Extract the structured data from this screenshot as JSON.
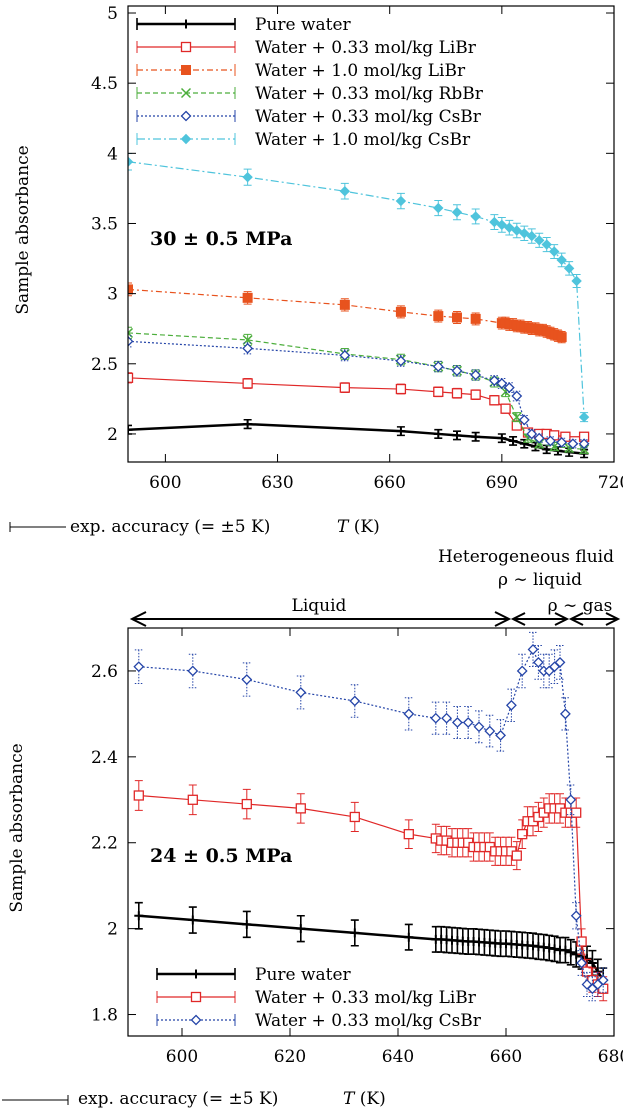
{
  "chart_data": [
    {
      "type": "line",
      "ylabel": "Sample absorbance",
      "xlabel": "T (K)",
      "footnote": "exp. accuracy (= ±5 K)",
      "annotation": "30 ±  0.5 MPa",
      "xlim": [
        590,
        720
      ],
      "ylim": [
        1.8,
        5.05
      ],
      "xticks": [
        600,
        630,
        660,
        690,
        720
      ],
      "yticks": [
        2,
        2.5,
        3,
        3.5,
        4,
        4.5,
        5
      ],
      "ytick_labels": [
        "2",
        "2.5",
        "3",
        "3.5",
        "4",
        "4.5",
        "5"
      ],
      "legend_position": "top-left",
      "series": [
        {
          "name": "Pure water",
          "color": "#000000",
          "dash": "",
          "marker": "plus",
          "width": 2.5,
          "x": [
            590,
            622,
            663,
            673,
            678,
            683,
            690,
            693,
            696,
            699,
            702,
            705,
            708,
            712
          ],
          "y": [
            2.03,
            2.07,
            2.02,
            2.0,
            1.99,
            1.98,
            1.97,
            1.95,
            1.93,
            1.91,
            1.89,
            1.88,
            1.87,
            1.86
          ]
        },
        {
          "name": "Water + 0.33 mol/kg LiBr",
          "color": "#e02828",
          "dash": "",
          "marker": "square-open",
          "width": 1.2,
          "x": [
            590,
            622,
            648,
            663,
            673,
            678,
            683,
            688,
            691,
            694,
            697,
            700,
            702,
            704,
            707,
            712
          ],
          "y": [
            2.4,
            2.36,
            2.33,
            2.32,
            2.3,
            2.29,
            2.28,
            2.24,
            2.18,
            2.06,
            2.01,
            2.0,
            2.0,
            1.99,
            1.98,
            1.98
          ]
        },
        {
          "name": "Water + 1.0 mol/kg LiBr",
          "color": "#e8531e",
          "dash": "6,3,2,3",
          "marker": "square-filled",
          "width": 1.2,
          "x": [
            590,
            622,
            648,
            663,
            673,
            678,
            683,
            690,
            691,
            692,
            693,
            694,
            695,
            696,
            697,
            698,
            699,
            700,
            701,
            702,
            703,
            704,
            705,
            706
          ],
          "y": [
            3.03,
            2.97,
            2.92,
            2.87,
            2.84,
            2.83,
            2.82,
            2.79,
            2.79,
            2.78,
            2.78,
            2.77,
            2.77,
            2.76,
            2.76,
            2.75,
            2.75,
            2.74,
            2.74,
            2.73,
            2.72,
            2.71,
            2.7,
            2.69
          ]
        },
        {
          "name": "Water + 0.33 mol/kg RbBr",
          "color": "#4cae3c",
          "dash": "5,3",
          "marker": "x",
          "width": 1.2,
          "x": [
            590,
            622,
            648,
            663,
            673,
            678,
            683,
            688,
            691,
            694,
            697,
            700,
            704,
            708,
            712
          ],
          "y": [
            2.72,
            2.67,
            2.57,
            2.53,
            2.48,
            2.45,
            2.42,
            2.37,
            2.3,
            2.12,
            1.97,
            1.93,
            1.91,
            1.9,
            1.89
          ]
        },
        {
          "name": "Water + 0.33 mol/kg CsBr",
          "color": "#2545a8",
          "dash": "2,2",
          "marker": "diamond-open",
          "width": 1.2,
          "x": [
            590,
            622,
            648,
            663,
            673,
            678,
            683,
            688,
            690,
            692,
            694,
            696,
            698,
            700,
            703,
            706,
            709,
            712
          ],
          "y": [
            2.66,
            2.61,
            2.56,
            2.52,
            2.48,
            2.45,
            2.42,
            2.38,
            2.36,
            2.33,
            2.27,
            2.1,
            2.0,
            1.97,
            1.95,
            1.94,
            1.93,
            1.93
          ]
        },
        {
          "name": "Water + 1.0 mol/kg CsBr",
          "color": "#4fc4dc",
          "dash": "8,3,2,3",
          "marker": "diamond-filled",
          "width": 1.2,
          "x": [
            590,
            622,
            648,
            663,
            673,
            678,
            683,
            688,
            690,
            692,
            694,
            696,
            698,
            700,
            702,
            704,
            706,
            708,
            710,
            712
          ],
          "y": [
            3.94,
            3.83,
            3.73,
            3.66,
            3.61,
            3.58,
            3.55,
            3.51,
            3.49,
            3.47,
            3.45,
            3.43,
            3.41,
            3.38,
            3.35,
            3.3,
            3.24,
            3.18,
            3.09,
            2.12
          ]
        }
      ]
    },
    {
      "type": "line",
      "ylabel": "Sample absorbance",
      "xlabel": "T (K)",
      "footnote": "exp. accuracy (= ±5 K)",
      "annotation": "24 ±  0.5 MPa",
      "xlim": [
        590,
        680
      ],
      "ylim": [
        1.75,
        2.7
      ],
      "xticks": [
        600,
        620,
        640,
        660,
        680
      ],
      "yticks": [
        1.8,
        2,
        2.2,
        2.4,
        2.6
      ],
      "ytick_labels": [
        "1.8",
        "2",
        "2.2",
        "2.4",
        "2.6"
      ],
      "legend_position": "bottom-left",
      "regions": {
        "header": "Heterogeneous fluid",
        "liquid": "Liquid",
        "rho_liquid": "ρ ∼ liquid",
        "rho_gas": "ρ ∼ gas"
      },
      "series": [
        {
          "name": "Pure water",
          "color": "#000000",
          "dash": "",
          "marker": "plus",
          "width": 2.5,
          "x": [
            592,
            602,
            612,
            622,
            632,
            642,
            647,
            648,
            649,
            650,
            651,
            652,
            653,
            654,
            655,
            656,
            657,
            658,
            659,
            660,
            661,
            662,
            663,
            664,
            665,
            666,
            667,
            668,
            669,
            670,
            671,
            672,
            673,
            674,
            675,
            676,
            677,
            678
          ],
          "y": [
            2.03,
            2.02,
            2.01,
            2.0,
            1.99,
            1.98,
            1.975,
            1.975,
            1.974,
            1.973,
            1.972,
            1.971,
            1.97,
            1.97,
            1.969,
            1.968,
            1.967,
            1.966,
            1.965,
            1.965,
            1.964,
            1.963,
            1.962,
            1.961,
            1.96,
            1.958,
            1.957,
            1.955,
            1.953,
            1.95,
            1.95,
            1.945,
            1.94,
            1.935,
            1.93,
            1.92,
            1.9,
            1.88
          ]
        },
        {
          "name": "Water + 0.33 mol/kg LiBr",
          "color": "#e02828",
          "dash": "",
          "marker": "square-open",
          "width": 1.2,
          "x": [
            592,
            602,
            612,
            622,
            632,
            642,
            647,
            648,
            649,
            650,
            651,
            652,
            653,
            654,
            655,
            656,
            657,
            658,
            659,
            660,
            661,
            662,
            663,
            664,
            665,
            666,
            667,
            668,
            669,
            670,
            671,
            672,
            673,
            674,
            675,
            676,
            677,
            678
          ],
          "y": [
            2.31,
            2.3,
            2.29,
            2.28,
            2.26,
            2.22,
            2.21,
            2.205,
            2.205,
            2.2,
            2.2,
            2.2,
            2.2,
            2.19,
            2.19,
            2.19,
            2.19,
            2.18,
            2.18,
            2.18,
            2.18,
            2.17,
            2.22,
            2.25,
            2.25,
            2.26,
            2.27,
            2.28,
            2.28,
            2.28,
            2.27,
            2.27,
            2.27,
            1.97,
            1.9,
            1.88,
            1.87,
            1.86
          ]
        },
        {
          "name": "Water + 0.33 mol/kg CsBr",
          "color": "#2545a8",
          "dash": "2,2",
          "marker": "diamond-open",
          "width": 1.2,
          "x": [
            592,
            602,
            612,
            622,
            632,
            642,
            647,
            649,
            651,
            653,
            655,
            657,
            659,
            661,
            663,
            665,
            666,
            667,
            668,
            669,
            670,
            671,
            672,
            673,
            674,
            675,
            676,
            677,
            678
          ],
          "y": [
            2.61,
            2.6,
            2.58,
            2.55,
            2.53,
            2.5,
            2.49,
            2.49,
            2.48,
            2.48,
            2.47,
            2.46,
            2.45,
            2.52,
            2.6,
            2.65,
            2.62,
            2.6,
            2.6,
            2.61,
            2.62,
            2.5,
            2.3,
            2.03,
            1.92,
            1.87,
            1.86,
            1.87,
            1.88
          ]
        }
      ]
    }
  ]
}
